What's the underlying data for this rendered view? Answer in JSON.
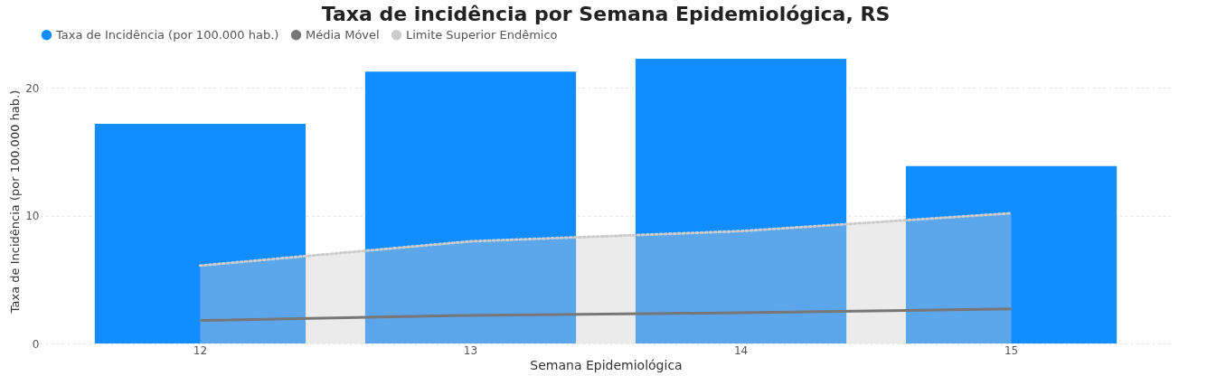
{
  "chart_data": {
    "type": "bar",
    "title": "Taxa de incidência por Semana Epidemiológica, RS",
    "xlabel": "Semana Epidemiológica",
    "ylabel": "Taxa de Incidência (por 100.000 hab.)",
    "categories": [
      "12",
      "13",
      "14",
      "15"
    ],
    "series": [
      {
        "name": "Taxa de Incidência (por 100.000 hab.)",
        "color": "#118dff",
        "values": [
          17.2,
          21.3,
          22.3,
          13.9
        ]
      },
      {
        "name": "Média Móvel",
        "type": "line",
        "color": "#777777",
        "line_style": "solid",
        "values": [
          1.8,
          2.2,
          2.4,
          2.7
        ]
      },
      {
        "name": "Limite Superior Endêmico",
        "type": "area",
        "color": "#cccccc",
        "line_style": "dotted",
        "values": [
          6.1,
          8.0,
          8.8,
          10.2
        ]
      }
    ],
    "ylim": [
      0,
      22.3
    ],
    "yticks": [
      0,
      10,
      20
    ],
    "grid": "y",
    "legend": "top left"
  }
}
